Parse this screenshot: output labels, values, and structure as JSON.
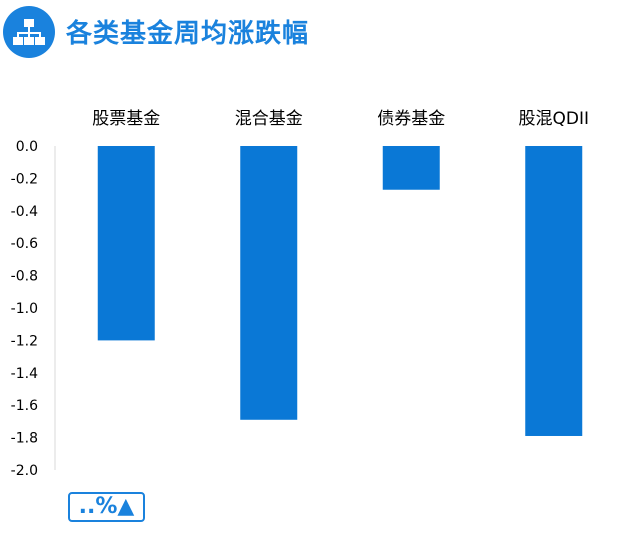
{
  "header": {
    "title": "各类基金周均涨跌幅",
    "icon": "hierarchy-icon",
    "accent_color": "#1a82dd"
  },
  "badge": {
    "label": "..%▲"
  },
  "chart_data": {
    "type": "bar",
    "categories": [
      "股票基金",
      "混合基金",
      "债券基金",
      "股混QDII"
    ],
    "values": [
      -1.2,
      -1.69,
      -0.27,
      -1.79
    ],
    "ylim": [
      -2.0,
      0.0
    ],
    "yticks": [
      "0.0",
      "-0.2",
      "-0.4",
      "-0.6",
      "-0.8",
      "-1.0",
      "-1.2",
      "-1.4",
      "-1.6",
      "-1.8",
      "-2.0"
    ],
    "xlabel": "",
    "ylabel": "",
    "bar_color": "#0a78d6",
    "grid": false,
    "category_axis_position": "top"
  }
}
